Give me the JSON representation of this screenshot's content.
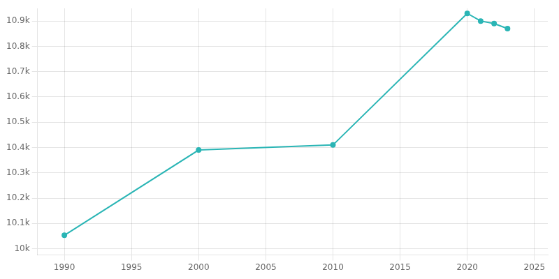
{
  "chart_data": {
    "type": "line",
    "x": [
      1990,
      2000,
      2010,
      2020,
      2021,
      2022,
      2023
    ],
    "values": [
      10053,
      10390,
      10410,
      10930,
      10900,
      10890,
      10870
    ],
    "color": "#2ab5b5",
    "marker": "circle",
    "xlim": [
      1988,
      2026
    ],
    "xticks": [
      1990,
      1995,
      2000,
      2005,
      2010,
      2015,
      2020,
      2025
    ],
    "ylim": [
      9975,
      10950
    ],
    "yticks": [
      {
        "value": 10000,
        "label": "10k"
      },
      {
        "value": 10100,
        "label": "10.1k"
      },
      {
        "value": 10200,
        "label": "10.2k"
      },
      {
        "value": 10300,
        "label": "10.3k"
      },
      {
        "value": 10400,
        "label": "10.4k"
      },
      {
        "value": 10500,
        "label": "10.5k"
      },
      {
        "value": 10600,
        "label": "10.6k"
      },
      {
        "value": 10700,
        "label": "10.7k"
      },
      {
        "value": 10800,
        "label": "10.8k"
      },
      {
        "value": 10900,
        "label": "10.9k"
      }
    ],
    "grid": true
  }
}
